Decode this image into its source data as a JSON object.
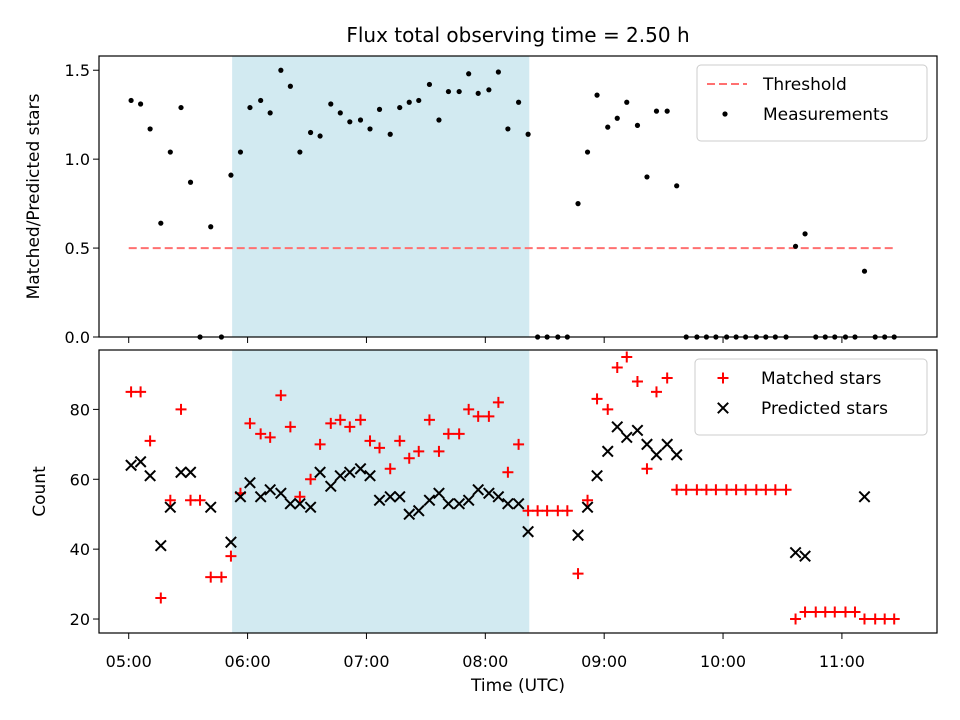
{
  "chart_data": {
    "title": "Flux total observing time = 2.50 h",
    "xlabel": "Time (UTC)",
    "x_unit": "hours UTC",
    "xlim": [
      4.75,
      11.8
    ],
    "x_ticks": [
      5,
      6,
      7,
      8,
      9,
      10,
      11
    ],
    "x_tick_labels": [
      "05:00",
      "06:00",
      "07:00",
      "08:00",
      "09:00",
      "10:00",
      "11:00"
    ],
    "shaded_span": {
      "x_start": 5.87,
      "x_end": 8.37,
      "color": "#add8e6"
    },
    "panels": [
      {
        "type": "scatter",
        "ylabel": "Matched/Predicted stars",
        "ylim": [
          0,
          1.58
        ],
        "y_ticks": [
          0.0,
          0.5,
          1.0,
          1.5
        ],
        "y_tick_labels": [
          "0.0",
          "0.5",
          "1.0",
          "1.5"
        ],
        "legend_position": "top-right",
        "threshold": {
          "name": "Threshold",
          "value": 0.5,
          "x_range": [
            5.0,
            11.45
          ],
          "color": "#ff7070"
        },
        "series": [
          {
            "name": "Measurements",
            "color": "#000000",
            "marker": "dot",
            "points": [
              [
                5.02,
                1.33
              ],
              [
                5.1,
                1.31
              ],
              [
                5.18,
                1.17
              ],
              [
                5.27,
                0.64
              ],
              [
                5.35,
                1.04
              ],
              [
                5.44,
                1.29
              ],
              [
                5.52,
                0.87
              ],
              [
                5.6,
                0.0
              ],
              [
                5.69,
                0.62
              ],
              [
                5.78,
                0.0
              ],
              [
                5.86,
                0.91
              ],
              [
                5.94,
                1.04
              ],
              [
                6.02,
                1.29
              ],
              [
                6.11,
                1.33
              ],
              [
                6.19,
                1.26
              ],
              [
                6.28,
                1.5
              ],
              [
                6.36,
                1.41
              ],
              [
                6.44,
                1.04
              ],
              [
                6.53,
                1.15
              ],
              [
                6.61,
                1.13
              ],
              [
                6.7,
                1.31
              ],
              [
                6.78,
                1.26
              ],
              [
                6.86,
                1.21
              ],
              [
                6.95,
                1.22
              ],
              [
                7.03,
                1.17
              ],
              [
                7.11,
                1.28
              ],
              [
                7.2,
                1.14
              ],
              [
                7.28,
                1.29
              ],
              [
                7.36,
                1.32
              ],
              [
                7.44,
                1.33
              ],
              [
                7.53,
                1.42
              ],
              [
                7.61,
                1.22
              ],
              [
                7.69,
                1.38
              ],
              [
                7.78,
                1.38
              ],
              [
                7.86,
                1.48
              ],
              [
                7.94,
                1.37
              ],
              [
                8.03,
                1.39
              ],
              [
                8.11,
                1.49
              ],
              [
                8.19,
                1.17
              ],
              [
                8.28,
                1.32
              ],
              [
                8.36,
                1.14
              ],
              [
                8.44,
                0.0
              ],
              [
                8.52,
                0.0
              ],
              [
                8.61,
                0.0
              ],
              [
                8.69,
                0.0
              ],
              [
                8.78,
                0.75
              ],
              [
                8.86,
                1.04
              ],
              [
                8.94,
                1.36
              ],
              [
                9.03,
                1.18
              ],
              [
                9.11,
                1.23
              ],
              [
                9.19,
                1.32
              ],
              [
                9.28,
                1.19
              ],
              [
                9.36,
                0.9
              ],
              [
                9.44,
                1.27
              ],
              [
                9.53,
                1.27
              ],
              [
                9.61,
                0.85
              ],
              [
                9.69,
                0.0
              ],
              [
                9.78,
                0.0
              ],
              [
                9.86,
                0.0
              ],
              [
                9.94,
                0.0
              ],
              [
                10.03,
                0.0
              ],
              [
                10.11,
                0.0
              ],
              [
                10.19,
                0.0
              ],
              [
                10.28,
                0.0
              ],
              [
                10.36,
                0.0
              ],
              [
                10.44,
                0.0
              ],
              [
                10.53,
                0.0
              ],
              [
                10.61,
                0.51
              ],
              [
                10.69,
                0.58
              ],
              [
                10.78,
                0.0
              ],
              [
                10.86,
                0.0
              ],
              [
                10.94,
                0.0
              ],
              [
                11.03,
                0.0
              ],
              [
                11.11,
                0.0
              ],
              [
                11.19,
                0.37
              ],
              [
                11.28,
                0.0
              ],
              [
                11.36,
                0.0
              ],
              [
                11.44,
                0.0
              ]
            ]
          }
        ]
      },
      {
        "type": "scatter",
        "ylabel": "Count",
        "ylim": [
          16,
          97
        ],
        "y_ticks": [
          20,
          40,
          60,
          80
        ],
        "y_tick_labels": [
          "20",
          "40",
          "60",
          "80"
        ],
        "legend_position": "top-right",
        "series": [
          {
            "name": "Matched stars",
            "color": "#ff0000",
            "marker": "plus",
            "points": [
              [
                5.02,
                85
              ],
              [
                5.1,
                85
              ],
              [
                5.18,
                71
              ],
              [
                5.27,
                26
              ],
              [
                5.35,
                54
              ],
              [
                5.44,
                80
              ],
              [
                5.52,
                54
              ],
              [
                5.6,
                54
              ],
              [
                5.69,
                32
              ],
              [
                5.78,
                32
              ],
              [
                5.86,
                38
              ],
              [
                5.94,
                56
              ],
              [
                6.02,
                76
              ],
              [
                6.11,
                73
              ],
              [
                6.19,
                72
              ],
              [
                6.28,
                84
              ],
              [
                6.36,
                75
              ],
              [
                6.44,
                55
              ],
              [
                6.53,
                60
              ],
              [
                6.61,
                70
              ],
              [
                6.7,
                76
              ],
              [
                6.78,
                77
              ],
              [
                6.86,
                75
              ],
              [
                6.95,
                77
              ],
              [
                7.03,
                71
              ],
              [
                7.11,
                69
              ],
              [
                7.2,
                63
              ],
              [
                7.28,
                71
              ],
              [
                7.36,
                66
              ],
              [
                7.44,
                68
              ],
              [
                7.53,
                77
              ],
              [
                7.61,
                68
              ],
              [
                7.69,
                73
              ],
              [
                7.78,
                73
              ],
              [
                7.86,
                80
              ],
              [
                7.94,
                78
              ],
              [
                8.03,
                78
              ],
              [
                8.11,
                82
              ],
              [
                8.19,
                62
              ],
              [
                8.28,
                70
              ],
              [
                8.36,
                51
              ],
              [
                8.44,
                51
              ],
              [
                8.52,
                51
              ],
              [
                8.61,
                51
              ],
              [
                8.69,
                51
              ],
              [
                8.78,
                33
              ],
              [
                8.86,
                54
              ],
              [
                8.94,
                83
              ],
              [
                9.03,
                80
              ],
              [
                9.11,
                92
              ],
              [
                9.19,
                95
              ],
              [
                9.28,
                88
              ],
              [
                9.36,
                63
              ],
              [
                9.44,
                85
              ],
              [
                9.53,
                89
              ],
              [
                9.61,
                57
              ],
              [
                9.69,
                57
              ],
              [
                9.78,
                57
              ],
              [
                9.86,
                57
              ],
              [
                9.94,
                57
              ],
              [
                10.03,
                57
              ],
              [
                10.11,
                57
              ],
              [
                10.19,
                57
              ],
              [
                10.28,
                57
              ],
              [
                10.36,
                57
              ],
              [
                10.44,
                57
              ],
              [
                10.53,
                57
              ],
              [
                10.61,
                20
              ],
              [
                10.69,
                22
              ],
              [
                10.78,
                22
              ],
              [
                10.86,
                22
              ],
              [
                10.94,
                22
              ],
              [
                11.03,
                22
              ],
              [
                11.11,
                22
              ],
              [
                11.19,
                20
              ],
              [
                11.28,
                20
              ],
              [
                11.36,
                20
              ],
              [
                11.44,
                20
              ]
            ]
          },
          {
            "name": "Predicted stars",
            "color": "#000000",
            "marker": "x",
            "points": [
              [
                5.02,
                64
              ],
              [
                5.1,
                65
              ],
              [
                5.18,
                61
              ],
              [
                5.27,
                41
              ],
              [
                5.35,
                52
              ],
              [
                5.44,
                62
              ],
              [
                5.52,
                62
              ],
              [
                5.69,
                52
              ],
              [
                5.86,
                42
              ],
              [
                5.94,
                55
              ],
              [
                6.02,
                59
              ],
              [
                6.11,
                55
              ],
              [
                6.19,
                57
              ],
              [
                6.28,
                56
              ],
              [
                6.36,
                53
              ],
              [
                6.44,
                53
              ],
              [
                6.53,
                52
              ],
              [
                6.61,
                62
              ],
              [
                6.7,
                58
              ],
              [
                6.78,
                61
              ],
              [
                6.86,
                62
              ],
              [
                6.95,
                63
              ],
              [
                7.03,
                61
              ],
              [
                7.11,
                54
              ],
              [
                7.2,
                55
              ],
              [
                7.28,
                55
              ],
              [
                7.36,
                50
              ],
              [
                7.44,
                51
              ],
              [
                7.53,
                54
              ],
              [
                7.61,
                56
              ],
              [
                7.69,
                53
              ],
              [
                7.78,
                53
              ],
              [
                7.86,
                54
              ],
              [
                7.94,
                57
              ],
              [
                8.03,
                56
              ],
              [
                8.11,
                55
              ],
              [
                8.19,
                53
              ],
              [
                8.28,
                53
              ],
              [
                8.36,
                45
              ],
              [
                8.78,
                44
              ],
              [
                8.86,
                52
              ],
              [
                8.94,
                61
              ],
              [
                9.03,
                68
              ],
              [
                9.11,
                75
              ],
              [
                9.19,
                72
              ],
              [
                9.28,
                74
              ],
              [
                9.36,
                70
              ],
              [
                9.44,
                67
              ],
              [
                9.53,
                70
              ],
              [
                9.61,
                67
              ],
              [
                10.61,
                39
              ],
              [
                10.69,
                38
              ],
              [
                11.19,
                55
              ]
            ]
          }
        ]
      }
    ]
  }
}
